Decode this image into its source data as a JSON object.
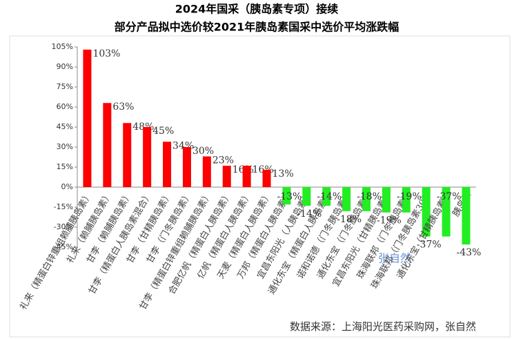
{
  "chart_data": {
    "type": "bar",
    "title": "2024年国采（胰岛素专项）接续",
    "subtitle": "部分产品拟中选价较2021年胰岛素国采中选价平均涨跌幅",
    "categories": [
      "礼来（精蛋白锌重组赖脯胰岛素）",
      "礼来（赖脯胰岛素）",
      "甘李（赖脯胰岛素）",
      "甘李（精蛋白人胰岛素混合）",
      "甘李（甘精胰岛素）",
      "甘李（门冬胰岛素）",
      "甘李（精蛋白锌重组赖脯胰岛素）",
      "合肥亿帆（精蛋白人胰岛素）",
      "亿帆（精蛋白人胰岛素）",
      "天麦（精蛋白人胰岛素）",
      "万邦（精蛋白人胰岛素）",
      "宜昌东阳光（人胰岛素）",
      "通化东宝（精蛋白人胰岛素）",
      "诺和诺德（门冬胰岛素）",
      "通化东宝（门冬胰岛素）",
      "宜昌东阳光（甘精胰岛素）",
      "珠海联邦（门冬胰岛素）",
      "珠海联邦（门冬胰岛素30）",
      "通化东宝（甘精胰岛素）",
      "胰岛素"
    ],
    "values": [
      103,
      63,
      48,
      45,
      34,
      30,
      23,
      16,
      16,
      13,
      -13,
      -14,
      -14,
      -18,
      -18,
      -19,
      -19,
      -37,
      -37,
      -43
    ],
    "value_labels": [
      "103%",
      "63%",
      "48%",
      "45%",
      "34%",
      "30%",
      "23%",
      "16%",
      "16%",
      "13%",
      "-13%",
      "-14%",
      "-14%",
      "-18%",
      "-18%",
      "-19%",
      "-19%",
      "-37%",
      "-37%",
      "-43%"
    ],
    "color_positive": "#ff0000",
    "color_negative": "#22ee22",
    "ylim": [
      -45,
      105
    ],
    "yticks": [
      {
        "value": 105,
        "label": "105%"
      },
      {
        "value": 90,
        "label": "90%"
      },
      {
        "value": 75,
        "label": "75%"
      },
      {
        "value": 60,
        "label": "60%"
      },
      {
        "value": 45,
        "label": "45%"
      },
      {
        "value": 30,
        "label": "30%"
      },
      {
        "value": 15,
        "label": "15%"
      },
      {
        "value": 0,
        "label": "0%"
      },
      {
        "value": -15,
        "label": "-15%"
      },
      {
        "value": -30,
        "label": "-30%"
      },
      {
        "value": -45,
        "label": "-45%"
      }
    ],
    "watermark": "张自然",
    "source": "数据来源：上海阳光医药采购网，张自然"
  }
}
